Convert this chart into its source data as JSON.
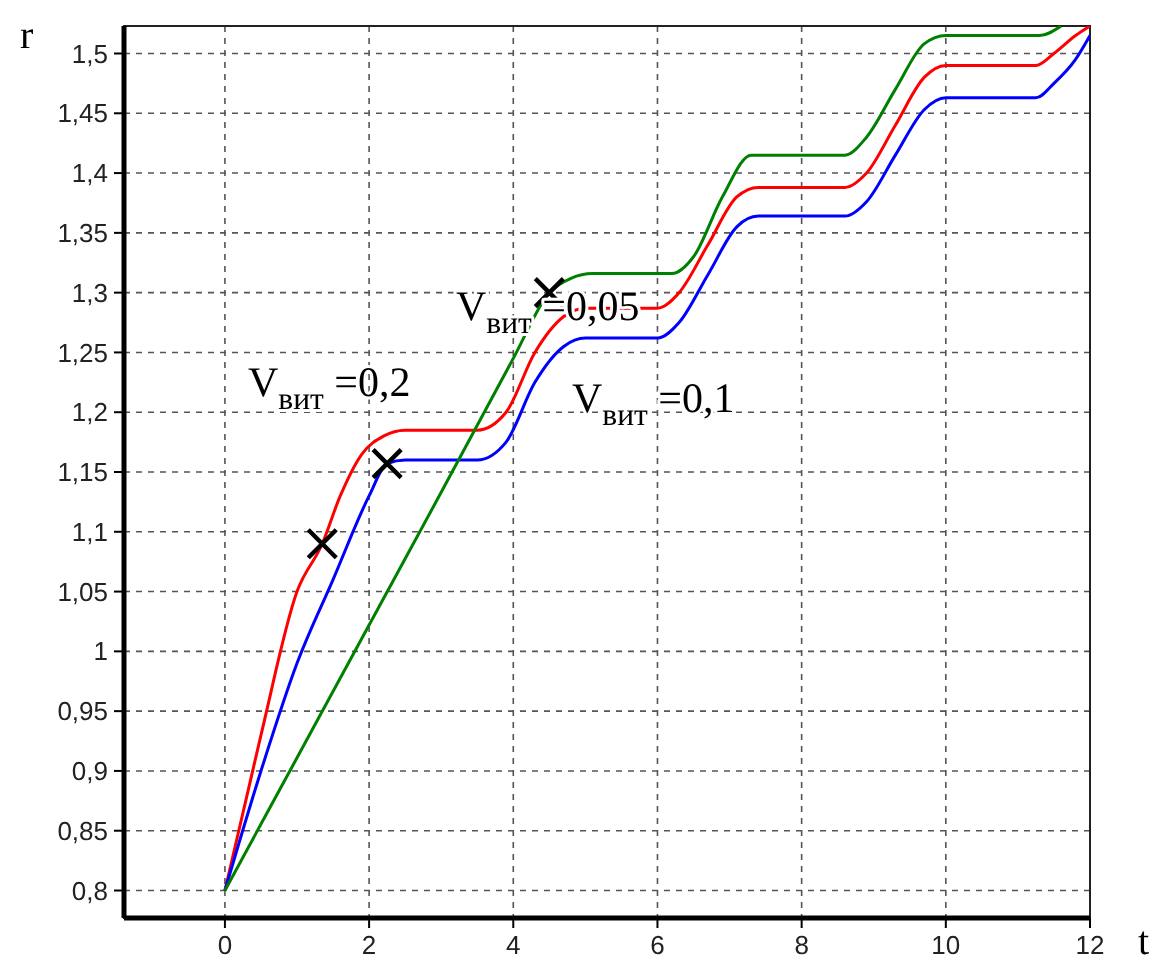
{
  "chart_data": {
    "type": "line",
    "xlabel": "t",
    "ylabel": "r",
    "xlim": [
      -1.4,
      12
    ],
    "ylim": [
      0.777,
      1.523
    ],
    "xticks": [
      0,
      2,
      4,
      6,
      8,
      10,
      12
    ],
    "yticks": [
      {
        "value": 0.8,
        "label": "0,8"
      },
      {
        "value": 0.85,
        "label": "0,85"
      },
      {
        "value": 0.9,
        "label": "0,9"
      },
      {
        "value": 0.95,
        "label": "0,95"
      },
      {
        "value": 1,
        "label": "1"
      },
      {
        "value": 1.05,
        "label": "1,05"
      },
      {
        "value": 1.1,
        "label": "1,1"
      },
      {
        "value": 1.15,
        "label": "1,15"
      },
      {
        "value": 1.2,
        "label": "1,2"
      },
      {
        "value": 1.25,
        "label": "1,25"
      },
      {
        "value": 1.3,
        "label": "1,3"
      },
      {
        "value": 1.35,
        "label": "1,35"
      },
      {
        "value": 1.4,
        "label": "1,4"
      },
      {
        "value": 1.45,
        "label": "1,45"
      },
      {
        "value": 1.5,
        "label": "1,5"
      }
    ],
    "grid": true,
    "line_style": "solid",
    "series": [
      {
        "color": "#ff0000",
        "x": [
          0,
          0.5,
          1,
          1.35,
          1.6,
          1.9,
          2.2,
          2.5,
          3.5,
          3.9,
          4.3,
          4.7,
          5,
          6,
          6.3,
          6.7,
          7.1,
          7.4,
          8.6,
          8.9,
          9.3,
          9.7,
          10,
          11.25,
          11.5,
          11.8,
          12
        ],
        "values": [
          0.8,
          0.93,
          1.05,
          1.09,
          1.13,
          1.165,
          1.18,
          1.185,
          1.185,
          1.2,
          1.25,
          1.28,
          1.287,
          1.287,
          1.3,
          1.34,
          1.38,
          1.388,
          1.388,
          1.4,
          1.44,
          1.48,
          1.49,
          1.49,
          1.5,
          1.515,
          1.523
        ]
      },
      {
        "color": "#0000ff",
        "x": [
          0,
          0.5,
          1,
          1.5,
          2,
          2.25,
          2.5,
          3.5,
          3.9,
          4.3,
          4.7,
          5,
          6,
          6.3,
          6.7,
          7.1,
          7.4,
          8.6,
          8.9,
          9.3,
          9.7,
          10,
          11.25,
          11.5,
          11.8,
          12
        ],
        "values": [
          0.8,
          0.9,
          0.99,
          1.06,
          1.13,
          1.157,
          1.16,
          1.16,
          1.175,
          1.225,
          1.255,
          1.262,
          1.262,
          1.275,
          1.315,
          1.355,
          1.364,
          1.364,
          1.376,
          1.415,
          1.453,
          1.463,
          1.463,
          1.475,
          1.495,
          1.515
        ]
      },
      {
        "color": "#008000",
        "x": [
          0,
          1,
          2,
          3,
          4,
          4.5,
          4.8,
          5.1,
          6.2,
          6.5,
          6.9,
          7.3,
          8.6,
          8.9,
          9.3,
          9.7,
          10,
          11.3,
          11.6
        ],
        "values": [
          0.8,
          0.911,
          1.022,
          1.133,
          1.245,
          1.3,
          1.312,
          1.316,
          1.316,
          1.33,
          1.38,
          1.415,
          1.415,
          1.43,
          1.47,
          1.508,
          1.515,
          1.515,
          1.523
        ]
      },
      {
        "type": "scatter",
        "marker": "cross",
        "color": "#000000",
        "x": [
          1.35,
          2.25,
          4.5
        ],
        "values": [
          1.09,
          1.157,
          1.3
        ]
      }
    ],
    "annotations": [
      "V$_{вит}$ =0,2",
      "V$_{вит}$ =0,05",
      "V$_{вит}$ =0,1"
    ]
  }
}
